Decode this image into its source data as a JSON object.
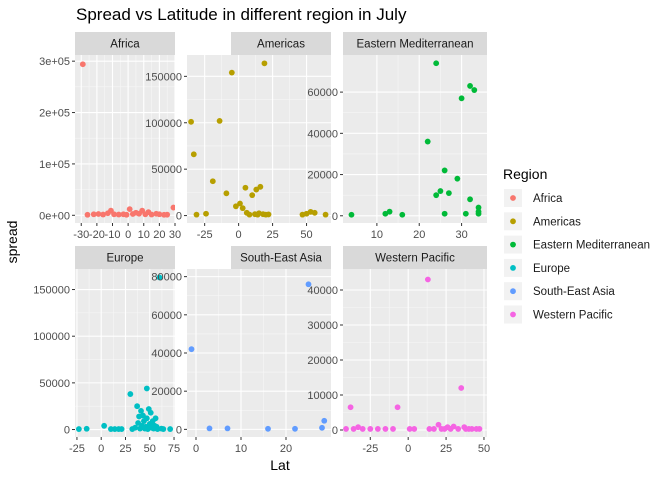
{
  "chart_data": {
    "type": "scatter",
    "title": "Spread vs Latitude in different region in July",
    "xlabel": "Lat",
    "ylabel": "spread",
    "legend": {
      "title": "Region",
      "position": "right",
      "entries": [
        {
          "name": "Africa",
          "color": "#F8766D"
        },
        {
          "name": "Americas",
          "color": "#B79F00"
        },
        {
          "name": "Eastern Mediterranean",
          "color": "#00BA38"
        },
        {
          "name": "Europe",
          "color": "#00BFC4"
        },
        {
          "name": "South-East Asia",
          "color": "#619CFF"
        },
        {
          "name": "Western Pacific",
          "color": "#F564E3"
        }
      ]
    },
    "grid": true,
    "facets": [
      {
        "name": "Africa",
        "strip": "Africa",
        "color": "#F8766D",
        "xlim": [
          -34,
          30
        ],
        "ylim": [
          -15000,
          312000
        ],
        "xticks": [
          -30,
          -20,
          -10,
          0,
          10,
          20,
          30
        ],
        "xticklabels": [
          "-30",
          "-20",
          "-10",
          "0",
          "10",
          "20",
          "30"
        ],
        "yticks": [
          0,
          100000,
          200000,
          300000
        ],
        "yticklabels": [
          "0e+00",
          "1e+05",
          "2e+05",
          "3e+05"
        ],
        "points": [
          [
            -29,
            294000
          ],
          [
            -26,
            1000
          ],
          [
            -22,
            2000
          ],
          [
            -19,
            2500
          ],
          [
            -16,
            1500
          ],
          [
            -13,
            4000
          ],
          [
            -11,
            9000
          ],
          [
            -9,
            2000
          ],
          [
            -6,
            1500
          ],
          [
            -3,
            2000
          ],
          [
            -1,
            1000
          ],
          [
            1,
            12000
          ],
          [
            3,
            2500
          ],
          [
            5,
            5000
          ],
          [
            7,
            3000
          ],
          [
            9,
            9000
          ],
          [
            11,
            2000
          ],
          [
            13,
            6000
          ],
          [
            15,
            1500
          ],
          [
            18,
            3000
          ],
          [
            20,
            2000
          ],
          [
            23,
            1000
          ],
          [
            25,
            1200
          ],
          [
            29,
            15000
          ]
        ]
      },
      {
        "name": "Americas",
        "strip": "Americas",
        "color": "#B79F00",
        "xlim": [
          -38,
          68
        ],
        "ylim": [
          -8000,
          173000
        ],
        "xticks": [
          -25,
          0,
          25,
          50
        ],
        "xticklabels": [
          "-25",
          "0",
          "25",
          "50"
        ],
        "yticks": [
          0,
          50000,
          100000,
          150000
        ],
        "yticklabels": [
          "0",
          "50000",
          "100000",
          "150000"
        ],
        "points": [
          [
            -35,
            101000
          ],
          [
            -33,
            66000
          ],
          [
            -31,
            1000
          ],
          [
            -24,
            2000
          ],
          [
            -19,
            37000
          ],
          [
            -14,
            102000
          ],
          [
            -9,
            24000
          ],
          [
            -5,
            154000
          ],
          [
            -2,
            10000
          ],
          [
            1,
            13000
          ],
          [
            3,
            8000
          ],
          [
            5,
            30000
          ],
          [
            6,
            3000
          ],
          [
            8,
            1000
          ],
          [
            10,
            22000
          ],
          [
            12,
            1500
          ],
          [
            13,
            28000
          ],
          [
            14,
            1000
          ],
          [
            15,
            2500
          ],
          [
            16,
            31000
          ],
          [
            18,
            1500
          ],
          [
            19,
            164000
          ],
          [
            20,
            1000
          ],
          [
            22,
            1200
          ],
          [
            47,
            1000
          ],
          [
            50,
            2000
          ],
          [
            53,
            4000
          ],
          [
            56,
            3000
          ],
          [
            64,
            1000
          ]
        ]
      },
      {
        "name": "Eastern Mediterranean",
        "strip": "Eastern Mediterranean",
        "color": "#00BA38",
        "xlim": [
          2,
          36
        ],
        "ylim": [
          -3500,
          78000
        ],
        "xticks": [
          10,
          20,
          30
        ],
        "xticklabels": [
          "10",
          "20",
          "30"
        ],
        "yticks": [
          0,
          20000,
          40000,
          60000
        ],
        "yticklabels": [
          "0",
          "20000",
          "40000",
          "60000"
        ],
        "points": [
          [
            4,
            500
          ],
          [
            12,
            1000
          ],
          [
            13,
            2000
          ],
          [
            16,
            500
          ],
          [
            22,
            36000
          ],
          [
            24,
            74000
          ],
          [
            24,
            10000
          ],
          [
            25,
            12000
          ],
          [
            26,
            1000
          ],
          [
            26,
            22000
          ],
          [
            27,
            11000
          ],
          [
            29,
            18000
          ],
          [
            30,
            57000
          ],
          [
            31,
            1000
          ],
          [
            32,
            8000
          ],
          [
            32,
            63000
          ],
          [
            33,
            61000
          ],
          [
            34,
            2000
          ],
          [
            34,
            4000
          ],
          [
            34,
            1000
          ]
        ]
      },
      {
        "name": "Europe",
        "strip": "Europe",
        "color": "#00BFC4",
        "xlim": [
          -27,
          76
        ],
        "ylim": [
          -8000,
          172000
        ],
        "xticks": [
          -25,
          0,
          25,
          50,
          75
        ],
        "xticklabels": [
          "-25",
          "0",
          "25",
          "50",
          "75"
        ],
        "yticks": [
          0,
          50000,
          100000,
          150000
        ],
        "yticklabels": [
          "0",
          "50000",
          "100000",
          "150000"
        ],
        "points": [
          [
            -23,
            500
          ],
          [
            -15,
            800
          ],
          [
            3,
            4000
          ],
          [
            10,
            500
          ],
          [
            14,
            500
          ],
          [
            18,
            500
          ],
          [
            21,
            500
          ],
          [
            30,
            38000
          ],
          [
            32,
            500
          ],
          [
            35,
            2000
          ],
          [
            37,
            25000
          ],
          [
            38,
            7000
          ],
          [
            39,
            14000
          ],
          [
            40,
            1000
          ],
          [
            41,
            20000
          ],
          [
            42,
            4000
          ],
          [
            43,
            15000
          ],
          [
            44,
            9000
          ],
          [
            45,
            1000
          ],
          [
            46,
            3000
          ],
          [
            47,
            44000
          ],
          [
            47,
            12000
          ],
          [
            48,
            500
          ],
          [
            49,
            22000
          ],
          [
            50,
            6000
          ],
          [
            51,
            18000
          ],
          [
            52,
            2000
          ],
          [
            53,
            9000
          ],
          [
            54,
            1000
          ],
          [
            55,
            4000
          ],
          [
            56,
            12000
          ],
          [
            57,
            3000
          ],
          [
            58,
            500
          ],
          [
            60,
            163000
          ],
          [
            62,
            1000
          ],
          [
            64,
            500
          ],
          [
            71,
            500
          ]
        ]
      },
      {
        "name": "South-East Asia",
        "strip": "South-East Asia",
        "color": "#619CFF",
        "xlim": [
          -2,
          30
        ],
        "ylim": [
          -4000,
          84000
        ],
        "xticks": [
          0,
          10,
          20
        ],
        "xticklabels": [
          "0",
          "10",
          "20"
        ],
        "yticks": [
          0,
          20000,
          40000,
          60000,
          80000
        ],
        "yticklabels": [
          "0",
          "20000",
          "40000",
          "60000",
          "80000"
        ],
        "points": [
          [
            -1,
            42000
          ],
          [
            3,
            500
          ],
          [
            7,
            500
          ],
          [
            16,
            300
          ],
          [
            22,
            300
          ],
          [
            25,
            76000
          ],
          [
            28,
            800
          ],
          [
            28.5,
            4500
          ]
        ]
      },
      {
        "name": "Western Pacific",
        "strip": "Western Pacific",
        "color": "#F564E3",
        "xlim": [
          -43,
          52
        ],
        "ylim": [
          -2000,
          46000
        ],
        "xticks": [
          -25,
          0,
          25,
          50
        ],
        "xticklabels": [
          "-25",
          "0",
          "25",
          "50"
        ],
        "yticks": [
          0,
          10000,
          20000,
          30000,
          40000
        ],
        "yticklabels": [
          "0",
          "10000",
          "20000",
          "30000",
          "40000"
        ],
        "points": [
          [
            -41,
            300
          ],
          [
            -38,
            6500
          ],
          [
            -36,
            300
          ],
          [
            -33,
            800
          ],
          [
            -30,
            300
          ],
          [
            -25,
            300
          ],
          [
            -20,
            300
          ],
          [
            -15,
            300
          ],
          [
            -10,
            300
          ],
          [
            -7,
            6500
          ],
          [
            1,
            300
          ],
          [
            4,
            300
          ],
          [
            13,
            43000
          ],
          [
            14,
            300
          ],
          [
            17,
            300
          ],
          [
            20,
            1500
          ],
          [
            22,
            300
          ],
          [
            24,
            300
          ],
          [
            26,
            800
          ],
          [
            28,
            300
          ],
          [
            30,
            1000
          ],
          [
            33,
            300
          ],
          [
            35,
            12000
          ],
          [
            37,
            800
          ],
          [
            38,
            300
          ],
          [
            40,
            300
          ],
          [
            42,
            300
          ],
          [
            45,
            300
          ],
          [
            47,
            300
          ]
        ]
      }
    ]
  }
}
